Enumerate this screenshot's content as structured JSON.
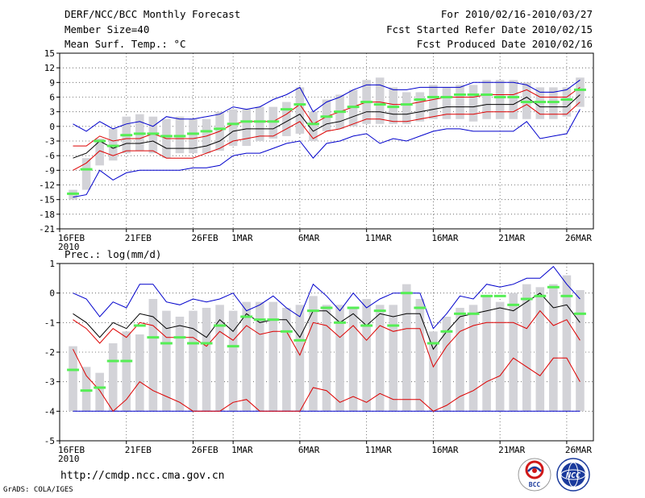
{
  "header": {
    "title": "DERF/NCC/BCC Monthly Forecast",
    "member_size": "Member Size=40",
    "variable": "Mean Surf. Temp.: °C",
    "for_period": "For 2010/02/16-2010/03/27",
    "start_date": "Fcst Started Refer Date 2010/02/15",
    "produced_date": "Fcst Produced Date 2010/02/16"
  },
  "footer": {
    "url": "http://cmdp.ncc.cma.gov.cn",
    "credit": "GrADS: COLA/IGES",
    "logo_left": "BCC",
    "logo_right": "NCC"
  },
  "colors": {
    "mean": "#000000",
    "inner_band": "#dd0000",
    "outer_band": "#0000cc",
    "box": "#d3d3d8",
    "marker": "#55ee55",
    "grid": "#555555"
  },
  "chart_data": [
    {
      "type": "ensemble_box_line",
      "name": "temperature",
      "ylabel": "Mean Surf. Temp.: °C",
      "ylim": [
        -21,
        15
      ],
      "yticks": [
        15,
        12,
        9,
        6,
        3,
        0,
        -3,
        -6,
        -9,
        -12,
        -15,
        -18,
        -21
      ],
      "xlim": [
        16,
        56
      ],
      "xticks": [
        {
          "x": 16,
          "label": "16FEB",
          "sublabel": "2010"
        },
        {
          "x": 21,
          "label": "21FEB"
        },
        {
          "x": 26,
          "label": "26FEB"
        },
        {
          "x": 29,
          "label": "1MAR"
        },
        {
          "x": 34,
          "label": "6MAR"
        },
        {
          "x": 39,
          "label": "11MAR"
        },
        {
          "x": 44,
          "label": "16MAR"
        },
        {
          "x": 49,
          "label": "21MAR"
        },
        {
          "x": 54,
          "label": "26MAR"
        }
      ],
      "x": [
        17,
        18,
        19,
        20,
        21,
        22,
        23,
        24,
        25,
        26,
        27,
        28,
        29,
        30,
        31,
        32,
        33,
        34,
        35,
        36,
        37,
        38,
        39,
        40,
        41,
        42,
        43,
        44,
        45,
        46,
        47,
        48,
        49,
        50,
        51,
        52,
        53,
        54,
        55
      ],
      "box_low": [
        -15,
        -13,
        -8,
        -7,
        -5.5,
        -5,
        -5.5,
        -6.5,
        -5.5,
        -5.5,
        -5.5,
        -5,
        -4,
        -4,
        -3,
        -2.5,
        -2,
        -1.5,
        -3,
        -1,
        -0.5,
        0,
        0.5,
        0.5,
        0.5,
        0.5,
        1,
        1.5,
        1.5,
        1.5,
        1,
        1.5,
        1.5,
        1.5,
        1.5,
        1.5,
        1.5,
        2,
        4
      ],
      "box_high": [
        -13,
        -6.5,
        -2.5,
        -0.5,
        2,
        2.5,
        2,
        1.5,
        2,
        1.5,
        1.5,
        3,
        3.5,
        3.5,
        4,
        4,
        5,
        8,
        3,
        5.5,
        6.5,
        7.5,
        9.5,
        10,
        8,
        7,
        7,
        8.5,
        8,
        8.5,
        8.5,
        9.5,
        9.5,
        9.5,
        9,
        8,
        8,
        8,
        10
      ],
      "marker": [
        -13.8,
        -8.8,
        -3,
        -4,
        -1.8,
        -1.5,
        -1.5,
        -2,
        -2,
        -1.5,
        -1,
        -0.5,
        0.5,
        1,
        1,
        1,
        3.5,
        4.5,
        0.5,
        2,
        3,
        4,
        5,
        4.5,
        4,
        4.5,
        5.5,
        6,
        6,
        6.5,
        6.5,
        6.5,
        6,
        6,
        5,
        5,
        5,
        5.5,
        7.5
      ],
      "mean": [
        -6.5,
        -5.5,
        -3,
        -4.5,
        -3.5,
        -3.5,
        -3,
        -4.5,
        -4.5,
        -4.5,
        -4,
        -3,
        -1,
        -0.5,
        -0.5,
        -0.5,
        1,
        2.5,
        -1,
        0.5,
        1,
        2,
        3,
        3,
        2.5,
        2.5,
        3,
        3.5,
        4,
        4,
        4,
        4.5,
        4.5,
        4.5,
        6,
        4,
        4,
        4,
        6.5
      ],
      "inner_high": [
        -4,
        -4,
        -2,
        -3,
        -2.5,
        -2.5,
        -1.5,
        -2.5,
        -2.5,
        -2.5,
        -2,
        -1,
        0.5,
        1,
        1,
        1,
        2.5,
        4.5,
        0.5,
        2,
        3,
        4,
        5,
        5,
        4.5,
        4.5,
        5,
        5.5,
        6,
        6,
        6,
        6.5,
        6.5,
        6.5,
        7.5,
        6,
        6,
        6,
        8
      ],
      "inner_low": [
        -9,
        -7.5,
        -5,
        -6,
        -5,
        -5,
        -5,
        -6.5,
        -6.5,
        -6.5,
        -5.5,
        -4.5,
        -3,
        -2.5,
        -2,
        -2,
        -0.5,
        1,
        -2.5,
        -1,
        -0.5,
        0.5,
        1.5,
        1.5,
        1,
        1,
        1.5,
        2,
        2.5,
        2.5,
        2.5,
        3,
        3,
        3,
        4.5,
        2.5,
        2.5,
        2.5,
        5
      ],
      "outer_high": [
        0.5,
        -1,
        1,
        -0.5,
        0.5,
        1,
        0,
        2,
        1.5,
        1.5,
        2,
        2.5,
        4,
        3.5,
        4,
        5.5,
        6.5,
        8,
        3,
        5,
        6,
        7.5,
        8.5,
        8.5,
        7.5,
        7.5,
        8,
        8,
        8,
        8,
        9,
        9,
        9,
        9,
        8.5,
        7,
        7,
        7.5,
        9.5
      ],
      "outer_low": [
        -14.5,
        -14,
        -9,
        -11,
        -9.5,
        -9,
        -9,
        -9,
        -9,
        -8.5,
        -8.5,
        -8,
        -6,
        -5.5,
        -5.5,
        -4.5,
        -3.5,
        -3,
        -6.5,
        -3.5,
        -3,
        -2,
        -1.5,
        -3.5,
        -2.5,
        -3,
        -2,
        -1,
        -0.5,
        -0.5,
        -1,
        -1,
        -1,
        -1,
        1,
        -2.5,
        -2,
        -1.5,
        3.5
      ]
    },
    {
      "type": "ensemble_box_line",
      "name": "precipitation",
      "ylabel": "Prec.: log(mm/d)",
      "ylim": [
        -5,
        1
      ],
      "yticks": [
        1,
        0,
        -1,
        -2,
        -3,
        -4,
        -5
      ],
      "xlim": [
        16,
        56
      ],
      "xticks": [
        {
          "x": 16,
          "label": "16FEB",
          "sublabel": "2010"
        },
        {
          "x": 21,
          "label": "21FEB"
        },
        {
          "x": 26,
          "label": "26FEB"
        },
        {
          "x": 29,
          "label": "1MAR"
        },
        {
          "x": 34,
          "label": "6MAR"
        },
        {
          "x": 39,
          "label": "11MAR"
        },
        {
          "x": 44,
          "label": "16MAR"
        },
        {
          "x": 49,
          "label": "21MAR"
        },
        {
          "x": 54,
          "label": "26MAR"
        }
      ],
      "x": [
        17,
        18,
        19,
        20,
        21,
        22,
        23,
        24,
        25,
        26,
        27,
        28,
        29,
        30,
        31,
        32,
        33,
        34,
        35,
        36,
        37,
        38,
        39,
        40,
        41,
        42,
        43,
        44,
        45,
        46,
        47,
        48,
        49,
        50,
        51,
        52,
        53,
        54,
        55
      ],
      "box_low": [
        -4,
        -4,
        -4,
        -4,
        -4,
        -4,
        -4,
        -4,
        -4,
        -4,
        -4,
        -4,
        -4,
        -4,
        -4,
        -4,
        -4,
        -4,
        -4,
        -4,
        -4,
        -4,
        -4,
        -4,
        -4,
        -4,
        -4,
        -4,
        -4,
        -4,
        -4,
        -4,
        -4,
        -4,
        -4,
        -4,
        -4,
        -4,
        -4
      ],
      "box_high": [
        -1.8,
        -2.5,
        -2.7,
        -1.7,
        -1.3,
        -1.4,
        -0.2,
        -0.6,
        -0.8,
        -0.6,
        -0.5,
        -0.4,
        -0.6,
        -0.3,
        -0.3,
        -0.3,
        -0.5,
        -0.4,
        -0.1,
        -0.4,
        -0.4,
        -0.5,
        -0.2,
        -0.4,
        -0.4,
        0.3,
        -0.2,
        -1.3,
        -0.8,
        -0.5,
        -0.4,
        -0.1,
        -0.3,
        0,
        0.3,
        0.2,
        0.3,
        0.6,
        0.1
      ],
      "marker": [
        -2.6,
        -3.3,
        -3.2,
        -2.3,
        -2.3,
        -1.1,
        -1.5,
        -1.7,
        -1.5,
        -1.7,
        -1.7,
        -1.1,
        -1.8,
        -0.8,
        -0.9,
        -0.9,
        -1.3,
        -1.6,
        -0.6,
        -0.5,
        -1,
        -0.5,
        -1.1,
        -0.6,
        -1.1,
        0,
        -0.5,
        -1.7,
        -1.3,
        -0.7,
        -0.7,
        -0.1,
        -0.1,
        -0.4,
        -0.2,
        -0.1,
        0.2,
        -0.1,
        -0.7
      ],
      "mean": [
        -0.7,
        -1,
        -1.5,
        -1,
        -1.2,
        -0.7,
        -0.8,
        -1.2,
        -1.1,
        -1.2,
        -1.5,
        -0.9,
        -1.3,
        -0.7,
        -1,
        -0.9,
        -0.9,
        -1.5,
        -0.6,
        -0.6,
        -1,
        -0.7,
        -1.1,
        -0.7,
        -0.8,
        -0.7,
        -0.7,
        -1.9,
        -1.3,
        -0.8,
        -0.7,
        -0.6,
        -0.5,
        -0.6,
        -0.3,
        0,
        -0.5,
        -0.4,
        -1
      ],
      "inner_high": [
        -0.9,
        -1.2,
        -1.7,
        -1.2,
        -1.5,
        -1,
        -1.1,
        -1.5,
        -1.5,
        -1.5,
        -1.8,
        -1.3,
        -1.6,
        -1.1,
        -1.4,
        -1.3,
        -1.3,
        -2.1,
        -1,
        -1.1,
        -1.5,
        -1.1,
        -1.6,
        -1.1,
        -1.3,
        -1.2,
        -1.2,
        -2.5,
        -1.8,
        -1.3,
        -1.1,
        -1,
        -1,
        -1,
        -1.2,
        -0.6,
        -1.1,
        -0.9,
        -1.6
      ],
      "inner_low": [
        -1.9,
        -2.8,
        -3.3,
        -4,
        -3.6,
        -3,
        -3.3,
        -3.5,
        -3.7,
        -4,
        -4,
        -4,
        -3.7,
        -3.6,
        -4,
        -4,
        -4,
        -4,
        -3.2,
        -3.3,
        -3.7,
        -3.5,
        -3.7,
        -3.4,
        -3.6,
        -3.6,
        -3.6,
        -4,
        -3.8,
        -3.5,
        -3.3,
        -3,
        -2.8,
        -2.2,
        -2.5,
        -2.8,
        -2.2,
        -2.2,
        -3
      ],
      "outer_high": [
        0,
        -0.2,
        -0.8,
        -0.3,
        -0.5,
        0.3,
        0.3,
        -0.3,
        -0.4,
        -0.2,
        -0.3,
        -0.2,
        0,
        -0.6,
        -0.4,
        -0.1,
        -0.5,
        -0.8,
        0.3,
        -0.1,
        -0.6,
        0,
        -0.5,
        -0.2,
        0,
        0,
        0,
        -1.2,
        -0.7,
        -0.1,
        -0.2,
        0.3,
        0.2,
        0.3,
        0.5,
        0.5,
        0.9,
        0.3,
        -0.2
      ],
      "outer_low": [
        -4,
        -4,
        -4,
        -4,
        -4,
        -4,
        -4,
        -4,
        -4,
        -4,
        -4,
        -4,
        -4,
        -4,
        -4,
        -4,
        -4,
        -4,
        -4,
        -4,
        -4,
        -4,
        -4,
        -4,
        -4,
        -4,
        -4,
        -4,
        -4,
        -4,
        -4,
        -4,
        -4,
        -4,
        -4,
        -4,
        -4,
        -4,
        -4
      ]
    }
  ]
}
